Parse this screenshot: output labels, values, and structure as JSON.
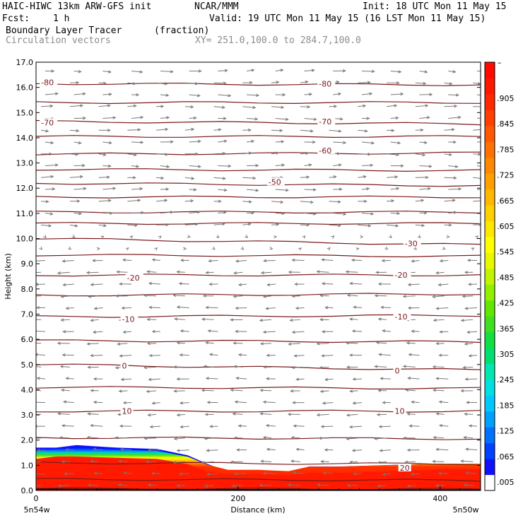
{
  "header": {
    "title_left": "HAIC-HIWC 13km ARW-GFS init",
    "source": "NCAR/MMM",
    "init": "Init: 18 UTC Mon 11 May 15",
    "fcst_label": "Fcst:",
    "fcst_value": "1 h",
    "valid": "Valid: 19 UTC Mon 11 May 15 (16 LST Mon 11 May 15)",
    "field_name": "Boundary Layer Tracer",
    "field_units": "(fraction)",
    "vectors_label": "Circulation vectors",
    "xsec_coords": "XY= 251.0,100.0 to 284.7,100.0"
  },
  "colors": {
    "contour": "#7a1a1a",
    "vector": "#777777",
    "filled_low": "#1515ff",
    "filled_high": "#ff1a00"
  },
  "chart_data": {
    "type": "cross-section (filled contour + line contour + vectors)",
    "title": "Boundary Layer Tracer",
    "xlabel": "Distance (km)",
    "ylabel": "Height (km)",
    "xlim": [
      0,
      440
    ],
    "ylim": [
      0,
      17
    ],
    "x_ticks": [
      "0",
      "200",
      "400"
    ],
    "x_ticks_values": [
      0,
      200,
      400
    ],
    "x_end_labels": [
      "5n54w",
      "5n50w"
    ],
    "y_ticks": [
      "0.0",
      "1.0",
      "2.0",
      "3.0",
      "4.0",
      "5.0",
      "6.0",
      "7.0",
      "8.0",
      "9.0",
      "10.0",
      "11.0",
      "12.0",
      "13.0",
      "14.0",
      "15.0",
      "16.0",
      "17.0"
    ],
    "colorbar": {
      "labels": [
        ".005",
        ".065",
        ".125",
        ".185",
        ".245",
        ".305",
        ".365",
        ".425",
        ".485",
        ".545",
        ".605",
        ".665",
        ".725",
        ".785",
        ".845",
        ".905"
      ],
      "top_label": "–",
      "colors": [
        "#ffffff",
        "#1010ff",
        "#0040ff",
        "#0070ff",
        "#00a0ff",
        "#00c8ff",
        "#00e0e0",
        "#00e8b0",
        "#00e070",
        "#10e040",
        "#40e020",
        "#60e800",
        "#90f000",
        "#c0f400",
        "#e8f800",
        "#ffff00",
        "#ffe800",
        "#ffd000",
        "#ffb800",
        "#ffa000",
        "#ff8800",
        "#ff7000",
        "#ff5800",
        "#ff4000",
        "#ff2800",
        "#ff1800",
        "#ff0a00"
      ]
    },
    "contour_labels": [
      {
        "text": "-80",
        "x": 5,
        "y": 16.2
      },
      {
        "text": "-80",
        "x": 280,
        "y": 16.15
      },
      {
        "text": "-70",
        "x": 5,
        "y": 14.6
      },
      {
        "text": "-70",
        "x": 280,
        "y": 14.65
      },
      {
        "text": "-60",
        "x": 280,
        "y": 13.5
      },
      {
        "text": "-50",
        "x": 230,
        "y": 12.25
      },
      {
        "text": "-30",
        "x": 365,
        "y": 9.8
      },
      {
        "text": "-20",
        "x": 90,
        "y": 8.45
      },
      {
        "text": "-20",
        "x": 355,
        "y": 8.55
      },
      {
        "text": "-10",
        "x": 85,
        "y": 6.8
      },
      {
        "text": "-10",
        "x": 355,
        "y": 6.9
      },
      {
        "text": "0",
        "x": 85,
        "y": 4.95
      },
      {
        "text": "0",
        "x": 355,
        "y": 4.75
      },
      {
        "text": "10",
        "x": 85,
        "y": 3.15
      },
      {
        "text": "10",
        "x": 355,
        "y": 3.15
      },
      {
        "text": "20",
        "x": 360,
        "y": 0.9
      }
    ],
    "temperature_levels": [
      {
        "h0": 0.07,
        "h1": 0.05
      },
      {
        "h0": 0.45,
        "h1": 0.4
      },
      {
        "h0": 1.1,
        "h1": 1.05
      },
      {
        "h0": 2.1,
        "h1": 2.05
      },
      {
        "h0": 3.15,
        "h1": 3.15
      },
      {
        "h0": 4.1,
        "h1": 4.05
      },
      {
        "h0": 5.0,
        "h1": 4.78
      },
      {
        "h0": 5.95,
        "h1": 5.9
      },
      {
        "h0": 6.9,
        "h1": 6.95
      },
      {
        "h0": 7.75,
        "h1": 7.8
      },
      {
        "h0": 8.55,
        "h1": 8.55
      },
      {
        "h0": 9.35,
        "h1": 9.3
      },
      {
        "h0": 10.0,
        "h1": 9.75
      },
      {
        "h0": 10.6,
        "h1": 10.6
      },
      {
        "h0": 11.05,
        "h1": 11.05
      },
      {
        "h0": 11.65,
        "h1": 11.65
      },
      {
        "h0": 12.2,
        "h1": 12.1
      },
      {
        "h0": 12.75,
        "h1": 12.7
      },
      {
        "h0": 13.35,
        "h1": 13.4
      },
      {
        "h0": 14.05,
        "h1": 14.05
      },
      {
        "h0": 14.65,
        "h1": 14.55
      },
      {
        "h0": 15.4,
        "h1": 15.4
      },
      {
        "h0": 16.15,
        "h1": 16.1
      }
    ],
    "boundary_layer_top": {
      "x": [
        0,
        20,
        40,
        80,
        120,
        150,
        170,
        190,
        220,
        250,
        270,
        300,
        340,
        380,
        400,
        440
      ],
      "top": [
        1.7,
        1.7,
        1.8,
        1.7,
        1.65,
        1.4,
        1.05,
        0.75,
        0.75,
        0.7,
        0.95,
        0.95,
        1.0,
        1.05,
        1.05,
        1.05
      ],
      "core_top": [
        1.25,
        1.35,
        1.35,
        1.3,
        1.25,
        1.05,
        0.75,
        0.65,
        0.65,
        0.6,
        0.7,
        0.7,
        0.75,
        0.8,
        0.85,
        0.85
      ]
    },
    "terrain_height": [
      0.03,
      0.03,
      0.03,
      0.03,
      0.03,
      0.02,
      0.02,
      0.02,
      0.02,
      0.02,
      0.02,
      0.02,
      0.02,
      0.02,
      0.02,
      0.02
    ]
  }
}
